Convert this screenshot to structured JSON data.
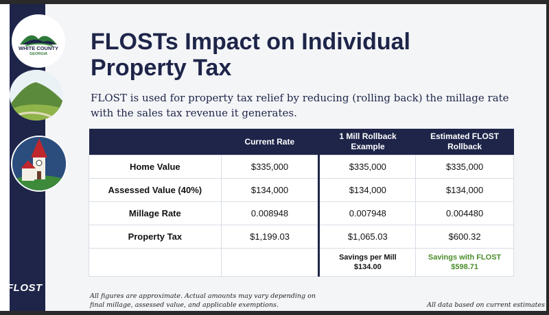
{
  "sidebar": {
    "county_logo_line1": "WHITE COUNTY",
    "county_logo_line2": "GEORGIA",
    "flost_logo": "FLOST"
  },
  "header": {
    "title": "FLOSTs Impact on Individual Property Tax",
    "subtitle": "FLOST is used for property tax relief by reducing (rolling back) the millage rate with the sales tax revenue it generates."
  },
  "table": {
    "headers": [
      "",
      "Current Rate",
      "1 Mill Rollback Example",
      "Estimated FLOST Rollback"
    ],
    "rows": [
      [
        "Home Value",
        "$335,000",
        "$335,000",
        "$335,000"
      ],
      [
        "Assessed Value (40%)",
        "$134,000",
        "$134,000",
        "$134,000"
      ],
      [
        "Millage Rate",
        "0.008948",
        "0.007948",
        "0.004480"
      ],
      [
        "Property Tax",
        "$1,199.03",
        "$1,065.03",
        "$600.32"
      ]
    ],
    "savings_mill_label": "Savings per Mill",
    "savings_mill_value": "$134.00",
    "savings_flost_label": "Savings with FLOST",
    "savings_flost_value": "$598.71"
  },
  "footer": {
    "disclaimer": "All figures are approximate. Actual amounts may vary depending on final millage, assessed value, and applicable exemptions.",
    "note": "All data based on current estimates"
  },
  "colors": {
    "navy": "#1e2549",
    "savings_green": "#4a8c2a"
  }
}
